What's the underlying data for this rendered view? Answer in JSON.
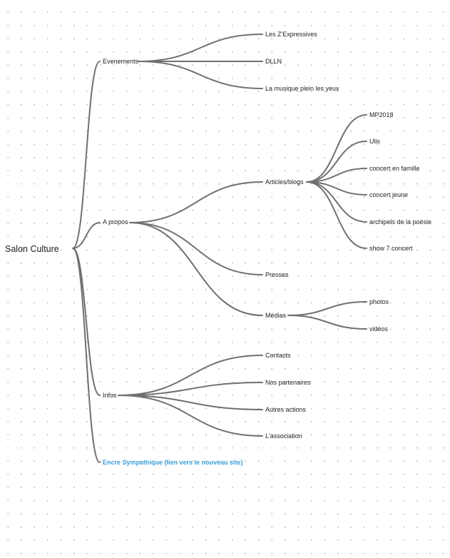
{
  "colors": {
    "connector": "#707070",
    "text": "#1e1e1e",
    "link": "#3f9fdc",
    "background": "#ffffff",
    "grid_dot": "#b9b9b9"
  },
  "mindmap": {
    "root": "Salon Culture",
    "branches": [
      {
        "label": "Evenements",
        "children": [
          {
            "label": "Les Z'Expressives"
          },
          {
            "label": "DLLN"
          },
          {
            "label": "La musique plein les yeux"
          }
        ]
      },
      {
        "label": "A propos",
        "children": [
          {
            "label": "Articles/blogs",
            "children": [
              {
                "label": "MP2018"
              },
              {
                "label": "Ulis"
              },
              {
                "label": "concert en famille"
              },
              {
                "label": "concert jeune"
              },
              {
                "label": "archipels de la poésie"
              },
              {
                "label": "show 7 concert"
              }
            ]
          },
          {
            "label": "Presses"
          },
          {
            "label": "Médias",
            "children": [
              {
                "label": "photos"
              },
              {
                "label": "vidéos"
              }
            ]
          }
        ]
      },
      {
        "label": "Infos",
        "children": [
          {
            "label": "Contacts"
          },
          {
            "label": "Nos partenaires"
          },
          {
            "label": "Autres actions"
          },
          {
            "label": "L'association"
          }
        ]
      },
      {
        "label": "Encre Sympathique (lien vers le nouveau site)",
        "is_link": true
      }
    ]
  }
}
